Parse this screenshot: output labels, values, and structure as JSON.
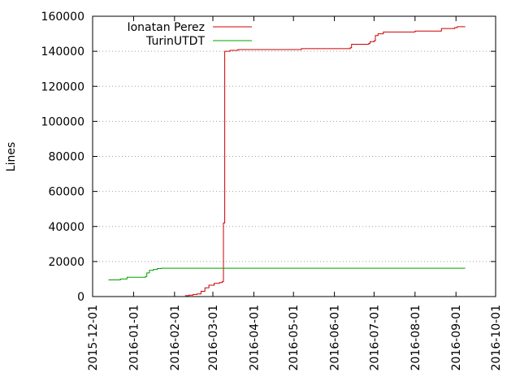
{
  "chart_data": {
    "type": "line",
    "title": "",
    "xlabel": "",
    "ylabel": "Lines",
    "x_axis_type": "date",
    "xlim": [
      "2015-12-01",
      "2016-10-01"
    ],
    "ylim": [
      0,
      160000
    ],
    "x_ticks": [
      "2015-12-01",
      "2016-01-01",
      "2016-02-01",
      "2016-03-01",
      "2016-04-01",
      "2016-05-01",
      "2016-06-01",
      "2016-07-01",
      "2016-08-01",
      "2016-09-01",
      "2016-10-01"
    ],
    "y_ticks": [
      "0",
      "20000",
      "40000",
      "60000",
      "80000",
      "100000",
      "120000",
      "140000",
      "160000"
    ],
    "grid": "horizontal dotted",
    "legend_position": "top-left",
    "series": [
      {
        "name": "Ionatan Perez",
        "color": "#cc0000",
        "x": [
          "2016-02-09",
          "2016-02-12",
          "2016-02-15",
          "2016-02-18",
          "2016-02-21",
          "2016-02-24",
          "2016-02-27",
          "2016-03-02",
          "2016-03-06",
          "2016-03-08",
          "2016-03-09",
          "2016-03-09",
          "2016-03-10",
          "2016-03-10",
          "2016-03-11",
          "2016-03-14",
          "2016-03-20",
          "2016-03-20",
          "2016-04-01",
          "2016-05-07",
          "2016-05-07",
          "2016-06-01",
          "2016-06-13",
          "2016-06-14",
          "2016-06-27",
          "2016-06-28",
          "2016-07-01",
          "2016-07-02",
          "2016-07-04",
          "2016-07-08",
          "2016-07-20",
          "2016-08-01",
          "2016-08-20",
          "2016-08-21",
          "2016-08-31",
          "2016-09-02",
          "2016-09-08"
        ],
        "y": [
          500,
          800,
          1200,
          1500,
          3000,
          5000,
          6500,
          7500,
          8000,
          8500,
          8500,
          42000,
          106000,
          140000,
          140000,
          140500,
          140500,
          141000,
          141000,
          141000,
          141500,
          141500,
          142000,
          144000,
          144500,
          145500,
          146000,
          149000,
          150000,
          151000,
          151000,
          151500,
          151500,
          153000,
          153500,
          154000,
          154000
        ]
      },
      {
        "name": "TurinUTDT",
        "color": "#00a000",
        "x": [
          "2015-12-13",
          "2015-12-15",
          "2015-12-22",
          "2015-12-27",
          "2016-01-01",
          "2016-01-10",
          "2016-01-11",
          "2016-01-13",
          "2016-01-16",
          "2016-01-19",
          "2016-01-22",
          "2016-09-08"
        ],
        "y": [
          9500,
          9500,
          10000,
          11000,
          11000,
          11500,
          13500,
          15000,
          15500,
          16000,
          16200,
          16200
        ]
      }
    ]
  }
}
